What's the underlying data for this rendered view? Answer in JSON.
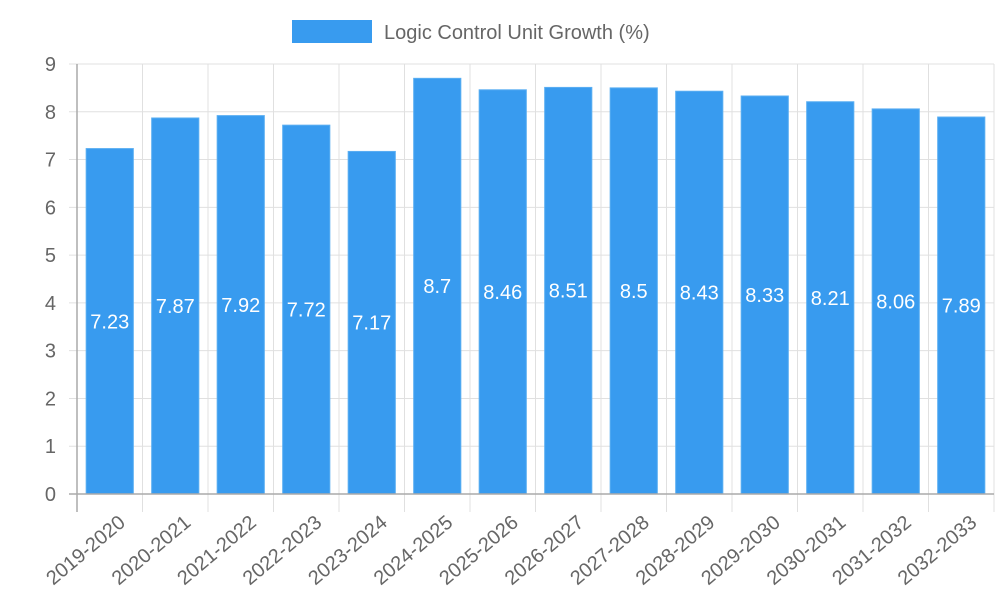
{
  "legend": {
    "label": "Logic Control Unit Growth (%)",
    "color": "#389bef"
  },
  "colors": {
    "bar": "#389bef",
    "bar_border": "#5aaef2",
    "grid": "#e0e0e0",
    "axis": "#aaaaaa",
    "text": "#666666",
    "bar_label": "#ffffff"
  },
  "chart_data": {
    "type": "bar",
    "title": "",
    "xlabel": "",
    "ylabel": "",
    "ylim": [
      0,
      9
    ],
    "yticks": [
      0,
      1,
      2,
      3,
      4,
      5,
      6,
      7,
      8,
      9
    ],
    "grid": true,
    "legend_position": "top",
    "categories": [
      "2019-2020",
      "2020-2021",
      "2021-2022",
      "2022-2023",
      "2023-2024",
      "2024-2025",
      "2025-2026",
      "2026-2027",
      "2027-2028",
      "2028-2029",
      "2029-2030",
      "2030-2031",
      "2031-2032",
      "2032-2033"
    ],
    "series": [
      {
        "name": "Logic Control Unit Growth (%)",
        "values": [
          7.23,
          7.87,
          7.92,
          7.72,
          7.17,
          8.7,
          8.46,
          8.51,
          8.5,
          8.43,
          8.33,
          8.21,
          8.06,
          7.89
        ]
      }
    ],
    "data_labels": [
      "7.23",
      "7.87",
      "7.92",
      "7.72",
      "7.17",
      "8.7",
      "8.46",
      "8.51",
      "8.5",
      "8.43",
      "8.33",
      "8.21",
      "8.06",
      "7.89"
    ]
  }
}
